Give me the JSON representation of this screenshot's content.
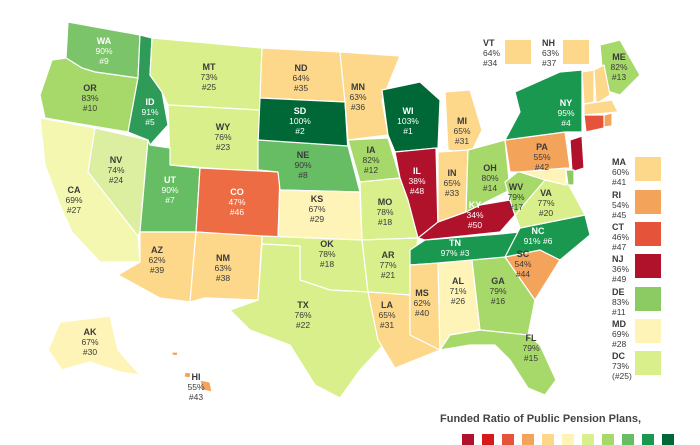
{
  "legend": {
    "title": "Funded Ratio of Public Pension Plans,",
    "colors": [
      "#b0112b",
      "#d7191c",
      "#e4533a",
      "#f4a35b",
      "#fdd78a",
      "#fff4b8",
      "#d9ef8b",
      "#a6d96a",
      "#66bd63",
      "#1a9850",
      "#006837"
    ]
  },
  "states": {
    "WA": {
      "abbr": "WA",
      "pct": "90%",
      "rank": "#9",
      "color": "#7cc46a"
    },
    "OR": {
      "abbr": "OR",
      "pct": "83%",
      "rank": "#10",
      "color": "#a6d96a"
    },
    "CA": {
      "abbr": "CA",
      "pct": "69%",
      "rank": "#27",
      "color": "#f3f7b0"
    },
    "NV": {
      "abbr": "NV",
      "pct": "74%",
      "rank": "#24",
      "color": "#dcefa0"
    },
    "ID": {
      "abbr": "ID",
      "pct": "91%",
      "rank": "#5",
      "color": "#2e9c58"
    },
    "MT": {
      "abbr": "MT",
      "pct": "73%",
      "rank": "#25",
      "color": "#d9ef8b"
    },
    "WY": {
      "abbr": "WY",
      "pct": "76%",
      "rank": "#23",
      "color": "#d9ef8b"
    },
    "UT": {
      "abbr": "UT",
      "pct": "90%",
      "rank": "#7",
      "color": "#66bd63"
    },
    "AZ": {
      "abbr": "AZ",
      "pct": "62%",
      "rank": "#39",
      "color": "#fdd78a"
    },
    "NM": {
      "abbr": "NM",
      "pct": "63%",
      "rank": "#38",
      "color": "#fdd78a"
    },
    "CO": {
      "abbr": "CO",
      "pct": "47%",
      "rank": "#46",
      "color": "#ee6c43"
    },
    "ND": {
      "abbr": "ND",
      "pct": "64%",
      "rank": "#35",
      "color": "#fdd78a"
    },
    "SD": {
      "abbr": "SD",
      "pct": "100%",
      "rank": "#2",
      "color": "#006837"
    },
    "NE": {
      "abbr": "NE",
      "pct": "90%",
      "rank": "#8",
      "color": "#66bd63"
    },
    "KS": {
      "abbr": "KS",
      "pct": "67%",
      "rank": "#29",
      "color": "#fff4b8"
    },
    "OK": {
      "abbr": "OK",
      "pct": "78%",
      "rank": "#18",
      "color": "#d9ef8b"
    },
    "TX": {
      "abbr": "TX",
      "pct": "76%",
      "rank": "#22",
      "color": "#d9ef8b"
    },
    "MN": {
      "abbr": "MN",
      "pct": "63%",
      "rank": "#36",
      "color": "#fdd78a"
    },
    "IA": {
      "abbr": "IA",
      "pct": "82%",
      "rank": "#12",
      "color": "#a6d96a"
    },
    "MO": {
      "abbr": "MO",
      "pct": "78%",
      "rank": "#18",
      "color": "#d9ef8b"
    },
    "AR": {
      "abbr": "AR",
      "pct": "77%",
      "rank": "#21",
      "color": "#d9ef8b"
    },
    "LA": {
      "abbr": "LA",
      "pct": "65%",
      "rank": "#31",
      "color": "#fdd78a"
    },
    "WI": {
      "abbr": "WI",
      "pct": "103%",
      "rank": "#1",
      "color": "#006837"
    },
    "IL": {
      "abbr": "IL",
      "pct": "38%",
      "rank": "#48",
      "color": "#b0112b"
    },
    "MI": {
      "abbr": "MI",
      "pct": "65%",
      "rank": "#31",
      "color": "#fdd78a"
    },
    "IN": {
      "abbr": "IN",
      "pct": "65%",
      "rank": "#33",
      "color": "#fdd78a"
    },
    "OH": {
      "abbr": "OH",
      "pct": "80%",
      "rank": "#14",
      "color": "#a6d96a"
    },
    "KY": {
      "abbr": "KY",
      "pct": "34%",
      "rank": "#50",
      "color": "#b0112b"
    },
    "TN": {
      "abbr": "TN",
      "pct": "97%",
      "rank": "#3",
      "color": "#1a9850"
    },
    "MS": {
      "abbr": "MS",
      "pct": "62%",
      "rank": "#40",
      "color": "#fdd78a"
    },
    "AL": {
      "abbr": "AL",
      "pct": "71%",
      "rank": "#26",
      "color": "#fff4b8"
    },
    "GA": {
      "abbr": "GA",
      "pct": "79%",
      "rank": "#16",
      "color": "#a6d96a"
    },
    "FL": {
      "abbr": "FL",
      "pct": "79%",
      "rank": "#15",
      "color": "#a6d96a"
    },
    "SC": {
      "abbr": "SC",
      "pct": "54%",
      "rank": "#44",
      "color": "#f4a35b"
    },
    "NC": {
      "abbr": "NC",
      "pct": "91%",
      "rank": "#6",
      "color": "#1a9850"
    },
    "VA": {
      "abbr": "VA",
      "pct": "77%",
      "rank": "#20",
      "color": "#d9ef8b"
    },
    "WV": {
      "abbr": "WV",
      "pct": "79%",
      "rank": "#17",
      "color": "#a6d96a"
    },
    "PA": {
      "abbr": "PA",
      "pct": "55%",
      "rank": "#42",
      "color": "#f4a35b"
    },
    "NY": {
      "abbr": "NY",
      "pct": "95%",
      "rank": "#4",
      "color": "#1a9850"
    },
    "ME": {
      "abbr": "ME",
      "pct": "82%",
      "rank": "#13",
      "color": "#a6d96a"
    },
    "AK": {
      "abbr": "AK",
      "pct": "67%",
      "rank": "#30",
      "color": "#fff4b8"
    },
    "HI": {
      "abbr": "HI",
      "pct": "55%",
      "rank": "#43",
      "color": "#f4a35b"
    },
    "VT": {
      "abbr": "VT",
      "pct": "64%",
      "rank": "#34",
      "color": "#fdd78a"
    },
    "NH": {
      "abbr": "NH",
      "pct": "63%",
      "rank": "#37",
      "color": "#fdd78a"
    },
    "MA": {
      "abbr": "MA",
      "pct": "60%",
      "rank": "#41",
      "color": "#fdd78a"
    },
    "RI": {
      "abbr": "RI",
      "pct": "54%",
      "rank": "#45",
      "color": "#f4a35b"
    },
    "CT": {
      "abbr": "CT",
      "pct": "46%",
      "rank": "#47",
      "color": "#e4533a"
    },
    "NJ": {
      "abbr": "NJ",
      "pct": "36%",
      "rank": "#49",
      "color": "#b0112b"
    },
    "DE": {
      "abbr": "DE",
      "pct": "83%",
      "rank": "#11",
      "color": "#8cca63"
    },
    "MD": {
      "abbr": "MD",
      "pct": "69%",
      "rank": "#28",
      "color": "#fff4b8"
    },
    "DC": {
      "abbr": "DC",
      "pct": "73%",
      "rank": "(#25)",
      "color": "#d9ef8b"
    }
  }
}
